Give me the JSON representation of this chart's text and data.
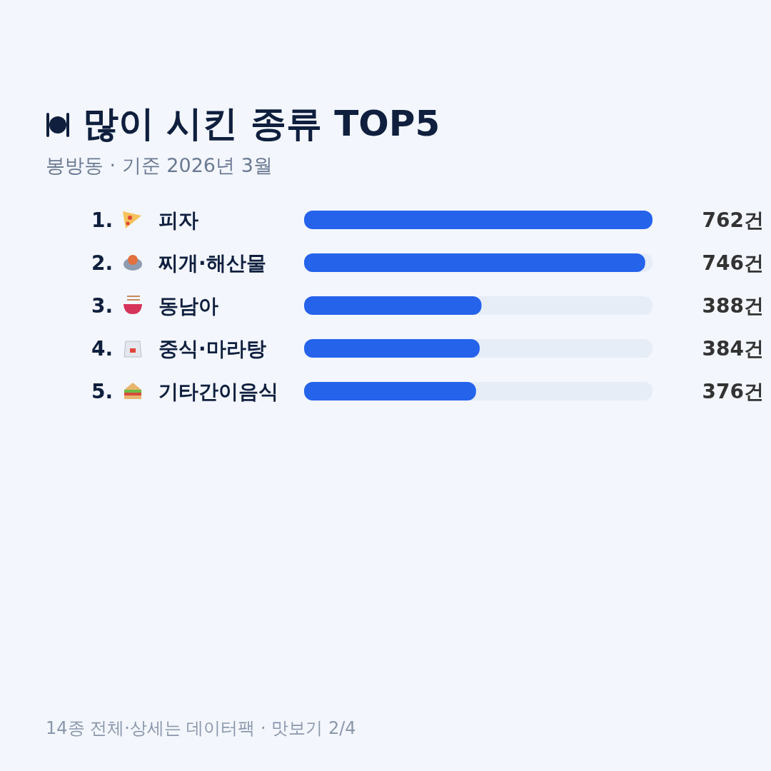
{
  "chart_data": {
    "type": "bar",
    "orientation": "horizontal",
    "title": "많이 시킨 종류 TOP5",
    "subtitle": "봉방동 · 기준 2026년 3월",
    "categories": [
      "1. 피자",
      "2. 찌개·해산물",
      "3. 동남아",
      "4. 중식·마라탕",
      "5. 기타간이음식"
    ],
    "values": [
      762,
      746,
      388,
      384,
      376
    ],
    "value_labels": [
      "762건",
      "746건",
      "388건",
      "384건",
      "376건"
    ],
    "color": "#2563eb",
    "tick_labels": "y",
    "annotations": [
      "14종 전체·상세는 데이터팩 · 맛보기 2/4"
    ]
  }
}
